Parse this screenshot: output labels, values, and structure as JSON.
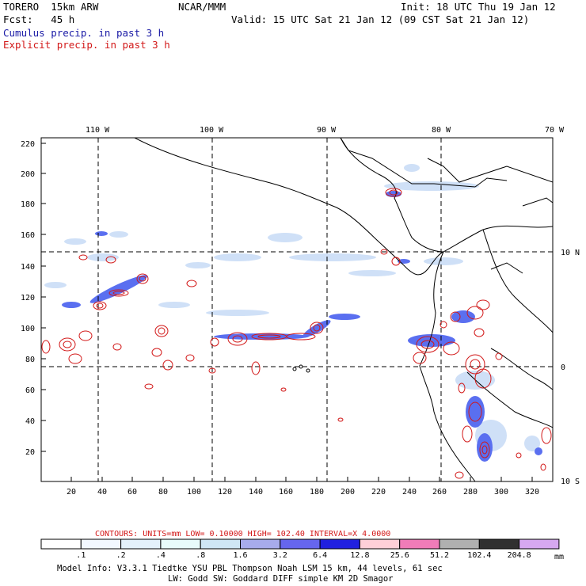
{
  "header": {
    "model": "TORERO  15km ARW",
    "org": "NCAR/MMM",
    "init": "Init: 18 UTC Thu 19 Jan 12",
    "fcst": "Fcst:   45 h",
    "valid": "Valid: 15 UTC Sat 21 Jan 12 (09 CST Sat 21 Jan 12)",
    "cumulus": "Cumulus precip. in past 3 h",
    "explicit": "Explicit precip. in past 3 h"
  },
  "map": {
    "top_labels": [
      "110 W",
      "100 W",
      "90 W",
      "80 W",
      "70 W"
    ],
    "right_labels": [
      "10 N",
      "0",
      "10 S"
    ],
    "y_ticks": [
      "220",
      "200",
      "180",
      "160",
      "140",
      "120",
      "100",
      "80",
      "60",
      "40",
      "20"
    ],
    "x_ticks": [
      "20",
      "40",
      "60",
      "80",
      "100",
      "120",
      "140",
      "160",
      "180",
      "200",
      "220",
      "240",
      "260",
      "280",
      "300",
      "320"
    ]
  },
  "contours": {
    "text": "CONTOURS:  UNITS=mm  LOW= 0.10000      HIGH=  102.40     INTERVAL=X  4.0000"
  },
  "colorbar": {
    "labels": [
      ".1",
      ".2",
      ".4",
      ".8",
      "1.6",
      "3.2",
      "6.4",
      "12.8",
      "25.6",
      "51.2",
      "102.4",
      "204.8"
    ],
    "unit": "mm",
    "colors": [
      "#ffffff",
      "#f2f8ff",
      "#e4f1fb",
      "#e8fbfb",
      "#cfe6f5",
      "#a7abeb",
      "#6666ee",
      "#2020e0",
      "#ffd0d8",
      "#f07cb8",
      "#b0b0b0",
      "#303030",
      "#d6a8f0"
    ]
  },
  "footer": {
    "line1": "Model Info: V3.3.1   Tiedtke YSU PBL  Thompson    Noah LSM  15 km,   44 levels,   61 sec",
    "line2": "LW: Godd SW: Goddard DIFF  simple KM  2D Smagor"
  },
  "colors": {
    "cumulus": "#1a1aa6",
    "explicit": "#d21818",
    "precip_blue": "#5a6ff0"
  }
}
